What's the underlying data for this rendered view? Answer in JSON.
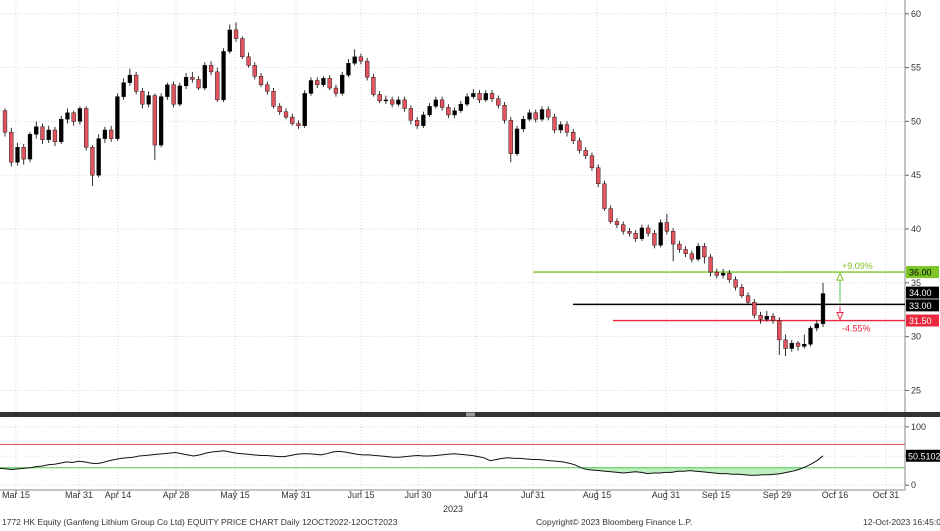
{
  "chart_data": [
    {
      "type": "candlestick",
      "ylim": [
        23,
        61
      ],
      "y_ticks": [
        25,
        30,
        35,
        40,
        45,
        50,
        55,
        60
      ],
      "x_ticks": [
        "Mar 15",
        "Mar 31",
        "Apr 14",
        "Apr 28",
        "May 15",
        "May 31",
        "Jun 15",
        "Jun 30",
        "Jul 14",
        "Jul 31",
        "Aug 15",
        "Aug 31",
        "Sep 15",
        "Sep 29",
        "Oct 16",
        "Oct 31"
      ],
      "year_label": "2023",
      "candles": [
        [
          51.0,
          49.0,
          51.2,
          48.6
        ],
        [
          49.0,
          46.2,
          49.4,
          45.8
        ],
        [
          46.2,
          47.6,
          48.0,
          45.9
        ],
        [
          47.6,
          46.5,
          47.9,
          46.0
        ],
        [
          46.5,
          48.8,
          49.0,
          46.2
        ],
        [
          48.8,
          49.5,
          50.0,
          48.4
        ],
        [
          49.5,
          48.3,
          49.8,
          47.9
        ],
        [
          48.3,
          49.2,
          49.6,
          48.0
        ],
        [
          49.2,
          48.1,
          49.5,
          47.7
        ],
        [
          48.1,
          50.2,
          50.5,
          47.9
        ],
        [
          50.2,
          50.8,
          51.2,
          49.8
        ],
        [
          50.8,
          50.0,
          51.0,
          49.6
        ],
        [
          50.0,
          51.2,
          51.4,
          49.7
        ],
        [
          51.2,
          47.6,
          51.4,
          47.3
        ],
        [
          47.6,
          45.0,
          47.8,
          44.0
        ],
        [
          45.0,
          48.4,
          48.8,
          44.8
        ],
        [
          48.4,
          49.2,
          49.5,
          48.0
        ],
        [
          49.2,
          48.4,
          49.6,
          48.1
        ],
        [
          48.4,
          52.3,
          52.6,
          48.2
        ],
        [
          52.3,
          53.6,
          54.0,
          52.0
        ],
        [
          53.6,
          54.3,
          54.9,
          53.3
        ],
        [
          54.3,
          52.8,
          54.6,
          52.5
        ],
        [
          52.8,
          51.6,
          53.1,
          51.2
        ],
        [
          51.6,
          52.4,
          52.8,
          51.3
        ],
        [
          52.4,
          47.8,
          52.6,
          46.4
        ],
        [
          47.8,
          52.3,
          52.6,
          47.6
        ],
        [
          52.3,
          53.4,
          53.6,
          52.0
        ],
        [
          53.4,
          51.6,
          53.7,
          51.3
        ],
        [
          51.6,
          53.3,
          53.6,
          51.4
        ],
        [
          53.3,
          54.1,
          54.5,
          53.0
        ],
        [
          54.1,
          53.9,
          54.6,
          53.6
        ],
        [
          53.9,
          53.1,
          54.2,
          52.9
        ],
        [
          53.1,
          55.2,
          55.5,
          52.9
        ],
        [
          55.2,
          54.6,
          55.6,
          54.3
        ],
        [
          54.6,
          52.0,
          55.0,
          51.8
        ],
        [
          52.0,
          56.5,
          56.8,
          51.8
        ],
        [
          56.5,
          58.5,
          59.0,
          56.3
        ],
        [
          58.5,
          57.7,
          59.2,
          57.4
        ],
        [
          57.7,
          56.0,
          57.9,
          55.8
        ],
        [
          56.0,
          55.2,
          56.4,
          55.0
        ],
        [
          55.2,
          54.2,
          55.5,
          53.9
        ],
        [
          54.2,
          53.4,
          54.5,
          53.2
        ],
        [
          53.4,
          52.8,
          53.7,
          52.5
        ],
        [
          52.8,
          51.4,
          53.1,
          51.2
        ],
        [
          51.4,
          50.9,
          51.7,
          50.6
        ],
        [
          50.9,
          50.4,
          51.2,
          50.2
        ],
        [
          50.4,
          49.8,
          50.7,
          49.6
        ],
        [
          49.8,
          49.6,
          50.1,
          49.3
        ],
        [
          49.6,
          52.6,
          52.9,
          49.4
        ],
        [
          52.6,
          53.8,
          54.1,
          52.4
        ],
        [
          53.8,
          53.4,
          54.1,
          53.1
        ],
        [
          53.4,
          54.0,
          54.2,
          53.2
        ],
        [
          54.0,
          53.1,
          54.3,
          52.9
        ],
        [
          53.1,
          52.6,
          53.4,
          52.3
        ],
        [
          52.6,
          54.3,
          54.6,
          52.4
        ],
        [
          54.3,
          55.4,
          55.8,
          54.1
        ],
        [
          55.4,
          56.0,
          56.7,
          55.2
        ],
        [
          56.0,
          55.6,
          56.3,
          55.3
        ],
        [
          55.6,
          54.1,
          55.9,
          53.8
        ],
        [
          54.1,
          52.5,
          54.4,
          52.3
        ],
        [
          52.5,
          51.9,
          52.8,
          51.7
        ],
        [
          51.9,
          52.0,
          52.4,
          51.6
        ],
        [
          52.0,
          51.6,
          52.3,
          51.3
        ],
        [
          51.6,
          52.0,
          52.3,
          51.4
        ],
        [
          52.0,
          51.2,
          52.3,
          50.9
        ],
        [
          51.2,
          50.1,
          51.5,
          49.7
        ],
        [
          50.1,
          49.6,
          50.4,
          49.3
        ],
        [
          49.6,
          50.6,
          50.9,
          49.4
        ],
        [
          50.6,
          51.4,
          51.7,
          50.4
        ],
        [
          51.4,
          52.0,
          52.3,
          51.2
        ],
        [
          52.0,
          51.3,
          52.3,
          51.0
        ],
        [
          51.3,
          50.6,
          51.6,
          50.3
        ],
        [
          50.6,
          51.0,
          51.3,
          50.3
        ],
        [
          51.0,
          51.6,
          51.9,
          50.8
        ],
        [
          51.6,
          52.3,
          52.6,
          51.4
        ],
        [
          52.3,
          52.6,
          53.0,
          52.1
        ],
        [
          52.6,
          52.0,
          52.9,
          51.7
        ],
        [
          52.0,
          52.6,
          52.9,
          51.8
        ],
        [
          52.6,
          52.1,
          52.9,
          51.8
        ],
        [
          52.1,
          51.5,
          52.4,
          51.2
        ],
        [
          51.5,
          50.1,
          51.8,
          49.8
        ],
        [
          50.1,
          47.0,
          50.4,
          46.2
        ],
        [
          47.0,
          49.3,
          49.6,
          46.8
        ],
        [
          49.3,
          50.2,
          50.5,
          49.0
        ],
        [
          50.2,
          50.8,
          51.1,
          50.0
        ],
        [
          50.8,
          50.2,
          51.1,
          49.9
        ],
        [
          50.2,
          51.1,
          51.4,
          50.0
        ],
        [
          51.1,
          50.4,
          51.4,
          50.1
        ],
        [
          50.4,
          49.2,
          50.7,
          48.9
        ],
        [
          49.2,
          49.7,
          50.0,
          48.9
        ],
        [
          49.7,
          49.0,
          50.0,
          48.6
        ],
        [
          49.0,
          48.2,
          49.3,
          47.9
        ],
        [
          48.2,
          47.3,
          48.5,
          47.0
        ],
        [
          47.3,
          46.8,
          47.6,
          46.5
        ],
        [
          46.8,
          45.7,
          47.1,
          45.4
        ],
        [
          45.7,
          44.2,
          46.0,
          43.9
        ],
        [
          44.2,
          41.9,
          44.5,
          41.7
        ],
        [
          41.9,
          40.7,
          42.2,
          40.5
        ],
        [
          40.7,
          40.4,
          41.0,
          40.1
        ],
        [
          40.4,
          39.8,
          40.7,
          39.5
        ],
        [
          39.8,
          39.6,
          40.1,
          39.3
        ],
        [
          39.6,
          39.1,
          39.9,
          38.8
        ],
        [
          39.1,
          40.1,
          40.4,
          38.9
        ],
        [
          40.1,
          39.6,
          40.4,
          39.3
        ],
        [
          39.6,
          38.5,
          39.9,
          38.2
        ],
        [
          38.5,
          40.6,
          40.9,
          38.3
        ],
        [
          40.6,
          39.8,
          41.4,
          39.5
        ],
        [
          39.8,
          38.6,
          40.1,
          37.0
        ],
        [
          38.6,
          38.1,
          38.9,
          37.8
        ],
        [
          38.1,
          37.7,
          38.4,
          37.4
        ],
        [
          37.7,
          37.2,
          38.0,
          36.9
        ],
        [
          37.2,
          38.4,
          38.7,
          37.0
        ],
        [
          38.4,
          37.4,
          38.7,
          36.8
        ],
        [
          37.4,
          36.0,
          37.7,
          35.6
        ],
        [
          36.0,
          35.7,
          36.3,
          35.4
        ],
        [
          35.7,
          35.9,
          36.3,
          35.4
        ],
        [
          35.9,
          35.3,
          36.2,
          35.0
        ],
        [
          35.3,
          34.6,
          35.6,
          34.3
        ],
        [
          34.6,
          33.8,
          34.9,
          33.6
        ],
        [
          33.8,
          33.2,
          34.1,
          33.0
        ],
        [
          33.2,
          32.0,
          33.5,
          31.7
        ],
        [
          32.0,
          31.6,
          32.3,
          31.2
        ],
        [
          31.6,
          31.9,
          32.4,
          31.4
        ],
        [
          31.9,
          31.5,
          32.2,
          31.2
        ],
        [
          31.5,
          29.7,
          31.8,
          28.3
        ],
        [
          29.7,
          28.9,
          30.2,
          28.2
        ],
        [
          28.9,
          29.4,
          29.7,
          28.6
        ],
        [
          29.4,
          29.1,
          29.6,
          28.7
        ],
        [
          29.1,
          29.3,
          30.2,
          28.9
        ],
        [
          29.3,
          30.8,
          31.0,
          29.1
        ],
        [
          30.8,
          31.2,
          31.5,
          30.5
        ],
        [
          31.2,
          34.0,
          35.0,
          30.9
        ]
      ],
      "levels": [
        {
          "label": "36.00",
          "value": 36.0,
          "color": "#7dc526",
          "pct": "+9.09%"
        },
        {
          "label": "33.00",
          "value": 33.0,
          "color": "#000000",
          "pct": ""
        },
        {
          "label": "31.50",
          "value": 31.5,
          "color": "#e8283c",
          "pct": "-4.55%"
        }
      ],
      "last_price_label": "34.00"
    },
    {
      "type": "line",
      "name": "RSI",
      "ylim": [
        -3,
        110
      ],
      "y_ticks": [
        0,
        50,
        100
      ],
      "upper_band": 70,
      "lower_band": 30,
      "last_value_label": "50.5102",
      "values": [
        29,
        28,
        27,
        28,
        29,
        30,
        32,
        33,
        35,
        36,
        38,
        40,
        39,
        41,
        40,
        38,
        37,
        39,
        42,
        44,
        46,
        47,
        48,
        50,
        51,
        52,
        53,
        54,
        55,
        56,
        54,
        52,
        50,
        52,
        55,
        57,
        58,
        59,
        57,
        55,
        54,
        53,
        52,
        51,
        51,
        50,
        49,
        49,
        51,
        53,
        54,
        54,
        53,
        52,
        54,
        57,
        58,
        57,
        55,
        53,
        52,
        52,
        51,
        50,
        49,
        48,
        48,
        49,
        50,
        51,
        50,
        50,
        51,
        52,
        53,
        54,
        53,
        52,
        51,
        49,
        47,
        42,
        44,
        46,
        47,
        46,
        46,
        45,
        44,
        44,
        43,
        42,
        41,
        40,
        38,
        35,
        30,
        27,
        26,
        25,
        24,
        23,
        22,
        21,
        22,
        23,
        22,
        20,
        21,
        21,
        22,
        22,
        24,
        24,
        25,
        24,
        23,
        22,
        21,
        20,
        20,
        19,
        19,
        18,
        17,
        17,
        18,
        18,
        19,
        20,
        22,
        24,
        27,
        31,
        36,
        42,
        50.5
      ]
    }
  ],
  "footer": {
    "left": "1772 HK Equity (Ganfeng Lithium Group Co Ltd) EQUITY PRICE CHART  Daily 12OCT2022-12OCT2023",
    "center": "Copyright© 2023 Bloomberg Finance L.P.",
    "right": "12-Oct-2023 16:45:00"
  },
  "colors": {
    "up": "#000000",
    "down": "#e1545f",
    "grid": "#c8c8c8",
    "rsi_fill": "#bfeebf",
    "rsi_upper": "#d24a4a",
    "rsi_lower": "#4fc94f"
  }
}
